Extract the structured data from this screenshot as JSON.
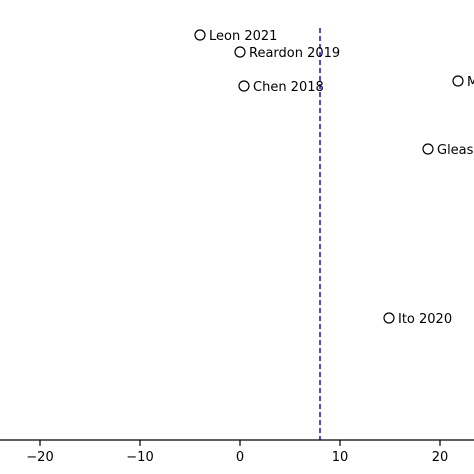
{
  "chart_data": {
    "type": "scatter",
    "title": "",
    "xlabel": "",
    "ylabel": "",
    "xlim": [
      -24,
      24
    ],
    "xticks": [
      -20,
      -10,
      0,
      10,
      20
    ],
    "xtick_labels": [
      "−20",
      "−10",
      "0",
      "10",
      "20"
    ],
    "reference_line": {
      "x": 8,
      "color": "#0000cc",
      "style": "dashed"
    },
    "marker": {
      "shape": "open-circle",
      "color": "#000000"
    },
    "points": [
      {
        "label": "Leon 2021",
        "x": -4
      },
      {
        "label": "Reardon 2019",
        "x": 0
      },
      {
        "label": "Chen 2018",
        "x": 0.4
      },
      {
        "label": "M",
        "x": 21.8
      },
      {
        "label": "Gleas",
        "x": 18.8
      },
      {
        "label": "Ito 2020",
        "x": 14.9
      }
    ],
    "grid": false,
    "legend": "none"
  }
}
